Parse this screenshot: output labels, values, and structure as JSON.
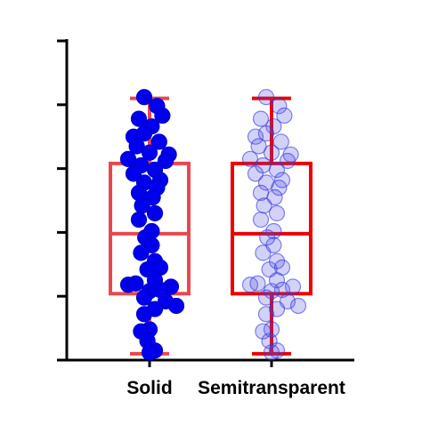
{
  "chart_data": {
    "type": "box",
    "categories": [
      "Solid",
      "Semitransparent"
    ],
    "ylim": [
      0,
      5
    ],
    "yticks": [
      0,
      1,
      2,
      3,
      4,
      5
    ],
    "ytick_labels_shown": false,
    "grid": false,
    "legend": "none",
    "boxes": [
      {
        "category": "Solid",
        "whisker_low": 0.1,
        "q1": 1.04,
        "median": 1.98,
        "q3": 3.08,
        "whisker_high": 4.1
      },
      {
        "category": "Semitransparent",
        "whisker_low": 0.1,
        "q1": 1.04,
        "median": 1.98,
        "q3": 3.08,
        "whisker_high": 4.1
      }
    ],
    "series": [
      {
        "category": "Solid",
        "points": [
          {
            "dx": -0.05,
            "y": 4.12
          },
          {
            "dx": 0.07,
            "y": 3.98
          },
          {
            "dx": 0.12,
            "y": 3.83
          },
          {
            "dx": -0.1,
            "y": 3.78
          },
          {
            "dx": 0.02,
            "y": 3.66
          },
          {
            "dx": -0.15,
            "y": 3.5
          },
          {
            "dx": -0.05,
            "y": 3.55
          },
          {
            "dx": 0.09,
            "y": 3.42
          },
          {
            "dx": -0.12,
            "y": 3.35
          },
          {
            "dx": 0.0,
            "y": 3.25
          },
          {
            "dx": 0.18,
            "y": 3.22
          },
          {
            "dx": -0.2,
            "y": 3.15
          },
          {
            "dx": 0.15,
            "y": 3.12
          },
          {
            "dx": -0.08,
            "y": 3.05
          },
          {
            "dx": 0.05,
            "y": 2.98
          },
          {
            "dx": -0.15,
            "y": 2.92
          },
          {
            "dx": 0.1,
            "y": 2.82
          },
          {
            "dx": -0.05,
            "y": 2.78
          },
          {
            "dx": 0.07,
            "y": 2.7
          },
          {
            "dx": -0.1,
            "y": 2.62
          },
          {
            "dx": 0.03,
            "y": 2.55
          },
          {
            "dx": -0.07,
            "y": 2.42
          },
          {
            "dx": 0.05,
            "y": 2.3
          },
          {
            "dx": -0.1,
            "y": 2.2
          },
          {
            "dx": 0.02,
            "y": 2.02
          },
          {
            "dx": -0.04,
            "y": 1.92
          },
          {
            "dx": 0.02,
            "y": 1.8
          },
          {
            "dx": -0.08,
            "y": 1.68
          },
          {
            "dx": 0.05,
            "y": 1.55
          },
          {
            "dx": 0.1,
            "y": 1.45
          },
          {
            "dx": -0.02,
            "y": 1.42
          },
          {
            "dx": 0.05,
            "y": 1.25
          },
          {
            "dx": -0.2,
            "y": 1.18
          },
          {
            "dx": -0.13,
            "y": 1.2
          },
          {
            "dx": 0.2,
            "y": 1.15
          },
          {
            "dx": 0.1,
            "y": 1.1
          },
          {
            "dx": 0.0,
            "y": 1.08
          },
          {
            "dx": -0.05,
            "y": 0.98
          },
          {
            "dx": 0.15,
            "y": 0.92
          },
          {
            "dx": 0.25,
            "y": 0.85
          },
          {
            "dx": 0.05,
            "y": 0.8
          },
          {
            "dx": -0.05,
            "y": 0.72
          },
          {
            "dx": 0.0,
            "y": 0.48
          },
          {
            "dx": -0.08,
            "y": 0.45
          },
          {
            "dx": -0.02,
            "y": 0.3
          },
          {
            "dx": 0.05,
            "y": 0.15
          },
          {
            "dx": 0.0,
            "y": 0.12
          }
        ]
      },
      {
        "category": "Semitransparent",
        "points": [
          {
            "dx": -0.05,
            "y": 4.12
          },
          {
            "dx": 0.07,
            "y": 3.98
          },
          {
            "dx": 0.12,
            "y": 3.83
          },
          {
            "dx": -0.1,
            "y": 3.78
          },
          {
            "dx": 0.02,
            "y": 3.66
          },
          {
            "dx": -0.15,
            "y": 3.5
          },
          {
            "dx": -0.05,
            "y": 3.55
          },
          {
            "dx": 0.09,
            "y": 3.42
          },
          {
            "dx": -0.12,
            "y": 3.35
          },
          {
            "dx": 0.0,
            "y": 3.25
          },
          {
            "dx": 0.18,
            "y": 3.22
          },
          {
            "dx": -0.2,
            "y": 3.15
          },
          {
            "dx": 0.15,
            "y": 3.12
          },
          {
            "dx": -0.08,
            "y": 3.05
          },
          {
            "dx": 0.05,
            "y": 2.98
          },
          {
            "dx": -0.15,
            "y": 2.92
          },
          {
            "dx": 0.1,
            "y": 2.82
          },
          {
            "dx": -0.05,
            "y": 2.78
          },
          {
            "dx": 0.07,
            "y": 2.7
          },
          {
            "dx": -0.1,
            "y": 2.62
          },
          {
            "dx": 0.03,
            "y": 2.55
          },
          {
            "dx": -0.07,
            "y": 2.42
          },
          {
            "dx": 0.05,
            "y": 2.3
          },
          {
            "dx": -0.1,
            "y": 2.2
          },
          {
            "dx": 0.02,
            "y": 2.02
          },
          {
            "dx": -0.04,
            "y": 1.92
          },
          {
            "dx": 0.02,
            "y": 1.8
          },
          {
            "dx": -0.08,
            "y": 1.68
          },
          {
            "dx": 0.05,
            "y": 1.55
          },
          {
            "dx": 0.1,
            "y": 1.45
          },
          {
            "dx": -0.02,
            "y": 1.42
          },
          {
            "dx": 0.05,
            "y": 1.25
          },
          {
            "dx": -0.2,
            "y": 1.18
          },
          {
            "dx": -0.13,
            "y": 1.2
          },
          {
            "dx": 0.2,
            "y": 1.15
          },
          {
            "dx": 0.1,
            "y": 1.1
          },
          {
            "dx": 0.0,
            "y": 1.08
          },
          {
            "dx": -0.05,
            "y": 0.98
          },
          {
            "dx": 0.15,
            "y": 0.92
          },
          {
            "dx": 0.25,
            "y": 0.85
          },
          {
            "dx": 0.05,
            "y": 0.8
          },
          {
            "dx": -0.05,
            "y": 0.72
          },
          {
            "dx": 0.0,
            "y": 0.48
          },
          {
            "dx": -0.08,
            "y": 0.45
          },
          {
            "dx": -0.02,
            "y": 0.3
          },
          {
            "dx": 0.05,
            "y": 0.15
          },
          {
            "dx": 0.0,
            "y": 0.12
          }
        ]
      }
    ],
    "styles": [
      {
        "box_color": "#E8474F",
        "point_color": "#0000EE",
        "point_opacity": 1.0,
        "point_stroke": "#0000CC"
      },
      {
        "box_color": "#EE0000",
        "point_color": "#4A4AE8",
        "point_opacity": 0.25,
        "point_stroke": "#3333DD"
      }
    ],
    "axis_color": "#000000"
  }
}
